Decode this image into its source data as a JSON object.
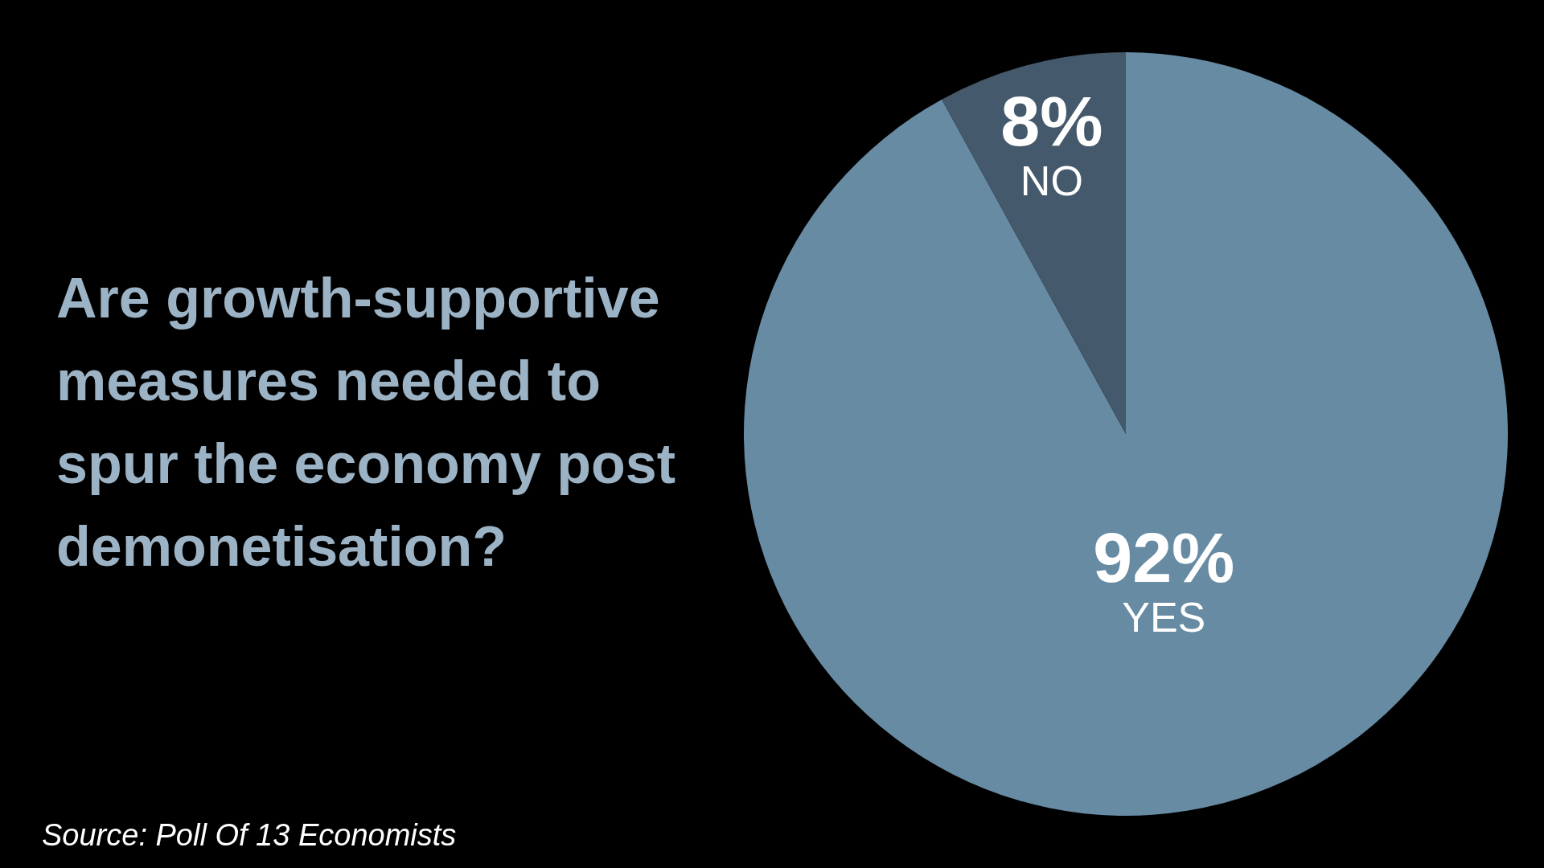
{
  "chart_data": {
    "type": "pie",
    "title": "Are growth-supportive measures needed to spur the economy post demonetisation?",
    "categories": [
      "YES",
      "NO"
    ],
    "values": [
      92,
      8
    ],
    "colors": [
      "#678ba3",
      "#44596b"
    ],
    "value_labels": [
      "92%",
      "8%"
    ],
    "legend": false,
    "annotations": [
      "Source: Poll Of 13 Economists"
    ]
  }
}
